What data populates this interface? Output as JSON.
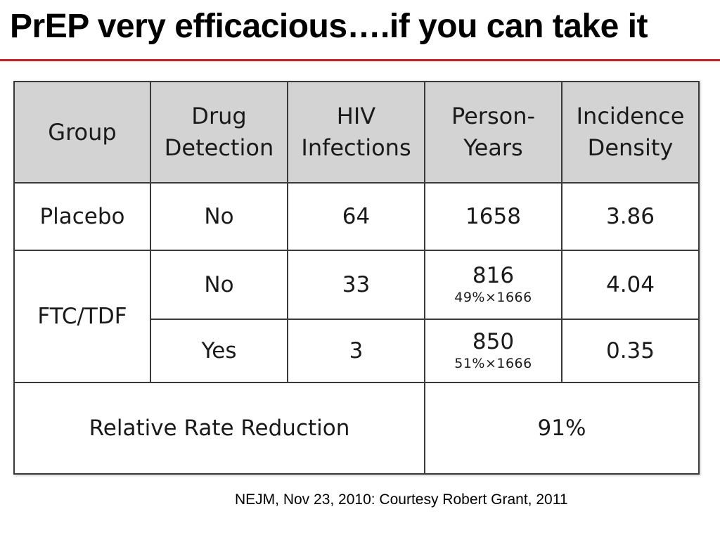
{
  "title": "PrEP very efficacious….if you can take it",
  "colors": {
    "title_rule": "#c0262c",
    "header_bg": "#d3d3d3"
  },
  "table": {
    "headers": {
      "group": "Group",
      "drug_detection": "Drug Detection",
      "hiv_infections": "HIV Infections",
      "person_years": "Person-Years",
      "incidence_density": "Incidence Density"
    },
    "placebo": {
      "group": "Placebo",
      "drug_detection": "No",
      "hiv_infections": "64",
      "person_years": "1658",
      "incidence_density": "3.86"
    },
    "ftc_tdf": {
      "group": "FTC/TDF",
      "no": {
        "drug_detection": "No",
        "hiv_infections": "33",
        "person_years": "816",
        "person_years_note": "49%×1666",
        "incidence_density": "4.04"
      },
      "yes": {
        "drug_detection": "Yes",
        "hiv_infections": "3",
        "person_years": "850",
        "person_years_note": "51%×1666",
        "incidence_density": "0.35"
      }
    },
    "relative_rate_reduction": {
      "label": "Relative Rate Reduction",
      "value": "91%"
    }
  },
  "citation": "NEJM, Nov 23, 2010: Courtesy Robert Grant, 2011"
}
